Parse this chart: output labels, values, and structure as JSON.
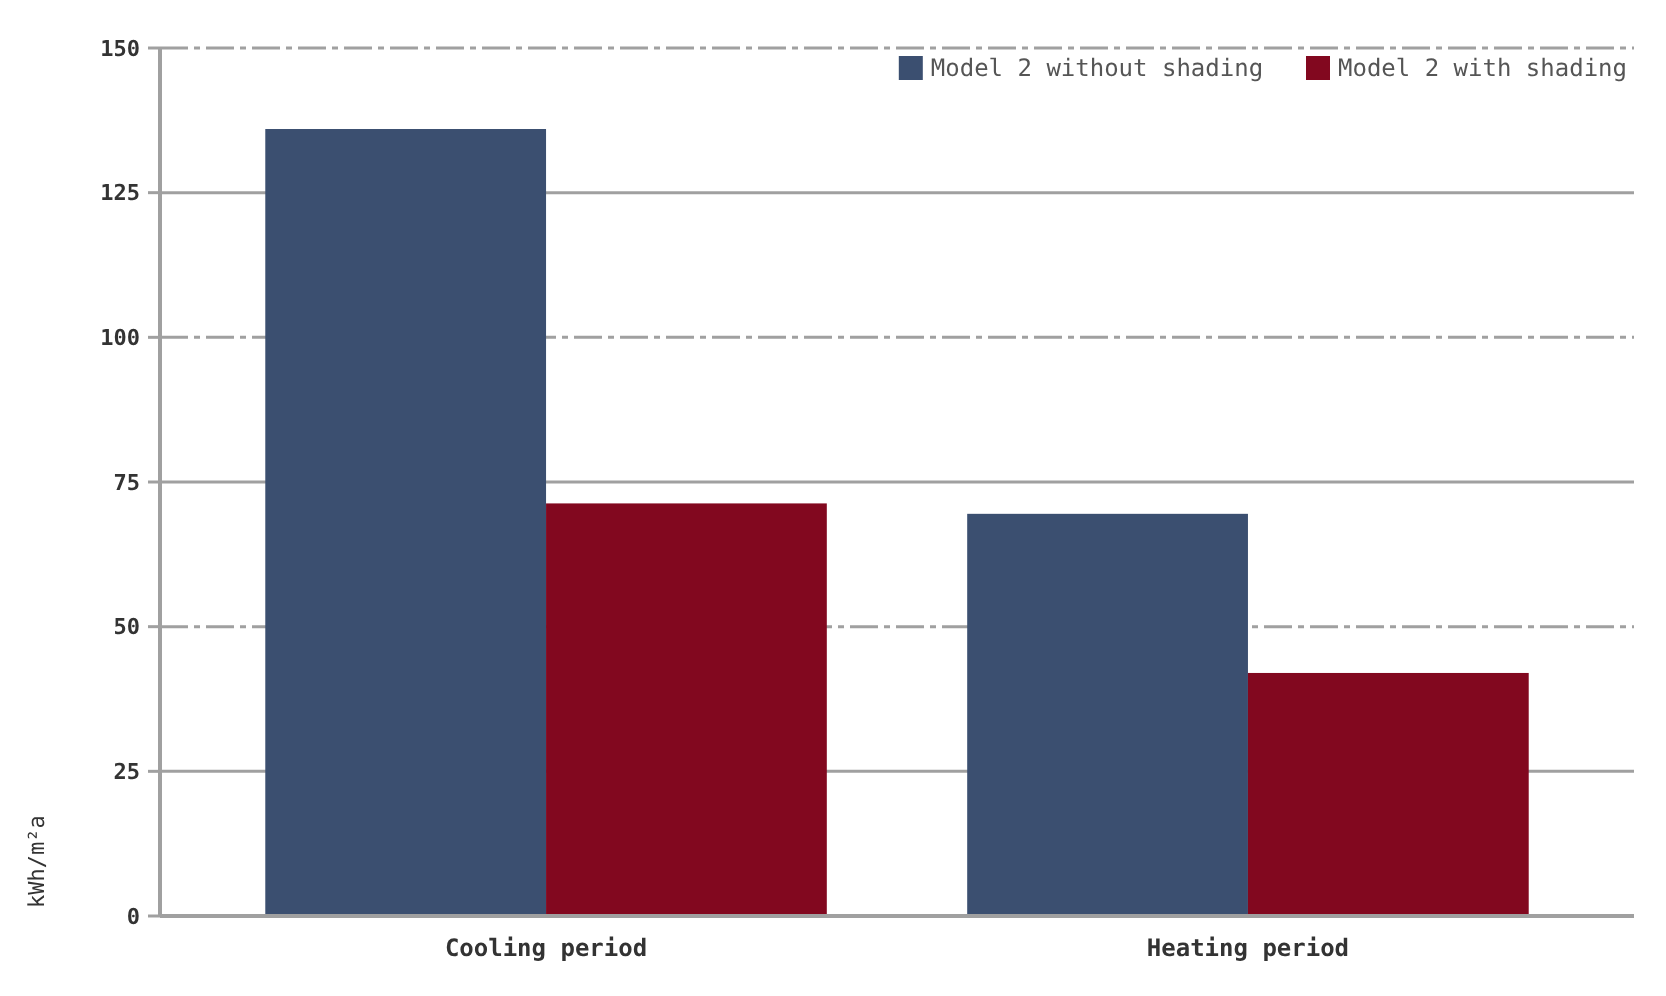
{
  "chart_data": {
    "type": "bar",
    "ylabel": "kWh/m²a",
    "categories": [
      "Cooling period",
      "Heating period"
    ],
    "series": [
      {
        "name": "Model 2 without shading",
        "color": "#3b4f70",
        "values": [
          136,
          69.5
        ]
      },
      {
        "name": "Model 2 with shading",
        "color": "#82081f",
        "values": [
          71.3,
          42
        ]
      }
    ],
    "ylim": [
      0,
      150
    ],
    "yticks": [
      0,
      25,
      50,
      75,
      100,
      125,
      150
    ],
    "grid": "y",
    "legend": "top right"
  }
}
